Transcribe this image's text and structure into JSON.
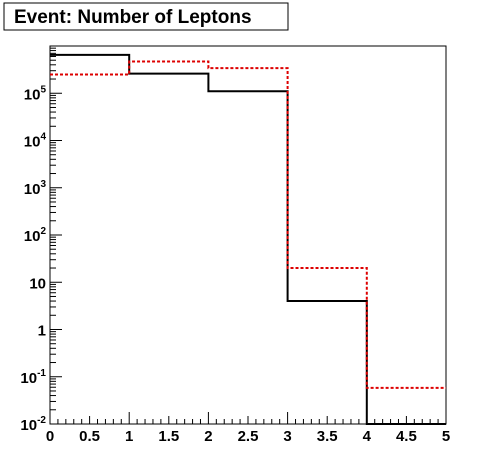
{
  "chart_data": {
    "type": "histogram",
    "title": "Event: Number of Leptons",
    "xlabel": "",
    "ylabel": "",
    "x_edges": [
      0,
      1,
      2,
      3,
      4,
      5
    ],
    "xlim": [
      0,
      5
    ],
    "ylim": [
      0.01,
      1000000
    ],
    "y_scale": "log",
    "grid": false,
    "x_ticks": [
      "0",
      "0.5",
      "1",
      "1.5",
      "2",
      "2.5",
      "3",
      "3.5",
      "4",
      "4.5",
      "5"
    ],
    "y_ticks": [
      {
        "value": 0.01,
        "base": "10",
        "exp": "-2"
      },
      {
        "value": 0.1,
        "base": "10",
        "exp": "-1"
      },
      {
        "value": 1,
        "base": "1",
        "exp": ""
      },
      {
        "value": 10,
        "base": "10",
        "exp": ""
      },
      {
        "value": 100,
        "base": "10",
        "exp": "2"
      },
      {
        "value": 1000,
        "base": "10",
        "exp": "3"
      },
      {
        "value": 10000,
        "base": "10",
        "exp": "4"
      },
      {
        "value": 100000,
        "base": "10",
        "exp": "5"
      }
    ],
    "series": [
      {
        "style": "solid",
        "color": "#000000",
        "values": [
          650000,
          260000,
          110000,
          4,
          0.01
        ]
      },
      {
        "style": "dashed",
        "color": "#dd0000",
        "values": [
          250000,
          470000,
          340000,
          20,
          0.058
        ]
      }
    ]
  }
}
